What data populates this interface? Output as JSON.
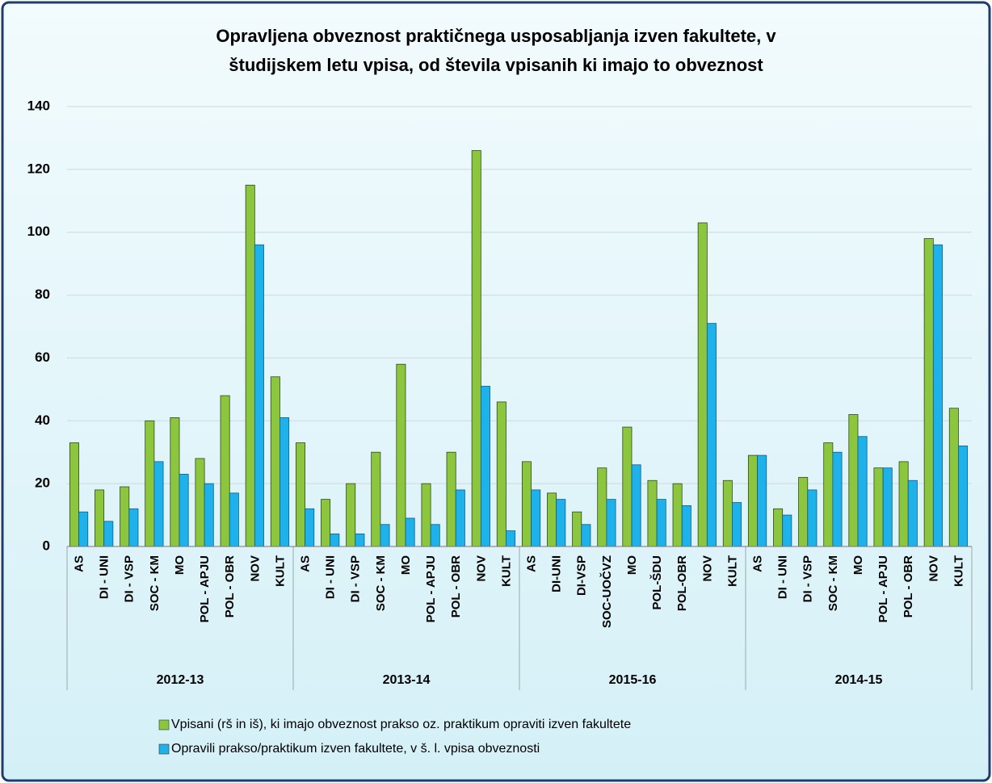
{
  "chart_data": {
    "type": "grouped_bar",
    "title": [
      "Opravljena obveznost praktičnega usposabljanja izven fakultete, v",
      "študijskem letu vpisa, od števila vpisanih ki imajo to obveznost"
    ],
    "category_groups": [
      {
        "name": "2012-13",
        "categories": [
          "AS",
          "DI - UNI",
          "DI - VSP",
          "SOC - KM",
          "MO",
          "POL - APJU",
          "POL - OBR",
          "NOV",
          "KULT"
        ]
      },
      {
        "name": "2013-14",
        "categories": [
          "AS",
          "DI - UNI",
          "DI - VSP",
          "SOC - KM",
          "MO",
          "POL - APJU",
          "POL - OBR",
          "NOV",
          "KULT"
        ]
      },
      {
        "name": "2015-16",
        "categories": [
          "AS",
          "DI-UNI",
          "DI-VSP",
          "SOC-UOČVZ",
          "MO",
          "POL-ŠDU",
          "POL-OBR",
          "NOV",
          "KULT"
        ]
      },
      {
        "name": "2014-15",
        "categories": [
          "AS",
          "DI - UNI",
          "DI - VSP",
          "SOC - KM",
          "MO",
          "POL - APJU",
          "POL - OBR",
          "NOV",
          "KULT"
        ]
      }
    ],
    "series": [
      {
        "name": "Vpisani (rš in iš), ki imajo obveznost prakso oz. praktikum  opraviti izven fakultete",
        "color": "#8cc63e",
        "values": [
          33,
          18,
          19,
          40,
          41,
          28,
          48,
          115,
          54,
          33,
          15,
          20,
          30,
          58,
          20,
          30,
          126,
          46,
          27,
          17,
          11,
          25,
          38,
          21,
          20,
          103,
          21,
          29,
          12,
          22,
          33,
          42,
          25,
          27,
          98,
          44
        ]
      },
      {
        "name": "Opravili prakso/praktikum izven fakultete, v š. l. vpisa obveznosti",
        "color": "#1fb1ea",
        "values": [
          11,
          8,
          12,
          27,
          23,
          20,
          17,
          96,
          41,
          12,
          4,
          4,
          7,
          9,
          7,
          18,
          51,
          5,
          18,
          15,
          7,
          15,
          26,
          15,
          13,
          71,
          14,
          29,
          10,
          18,
          30,
          35,
          25,
          21,
          96,
          32
        ]
      }
    ],
    "ylim": [
      0,
      140
    ],
    "yticks": [
      0,
      20,
      40,
      60,
      80,
      100,
      120,
      140
    ],
    "grid": true,
    "legend": "bottom"
  }
}
